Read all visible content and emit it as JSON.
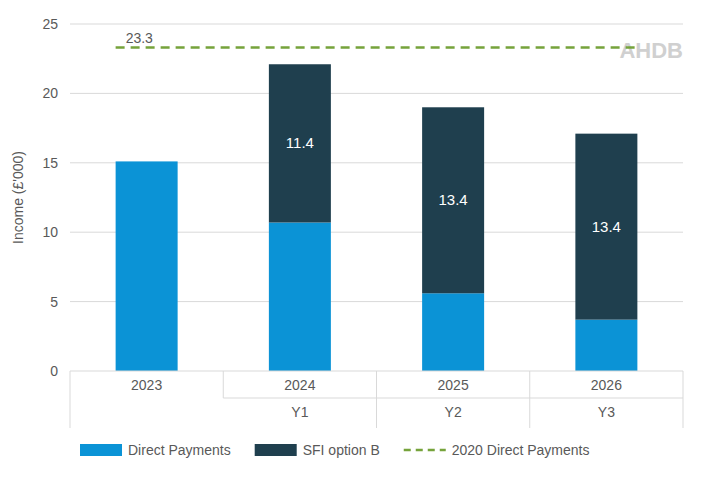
{
  "chart_data": {
    "type": "bar",
    "stacked": true,
    "grid": true,
    "legend": "bottom",
    "y_label": "Income (£'000)",
    "logo_text": "AHDB",
    "categories": [
      "2023",
      "2024",
      "2025",
      "2026"
    ],
    "x_sublabels": [
      null,
      "Y1",
      "Y2",
      "Y3"
    ],
    "ylim": [
      0,
      25
    ],
    "yticks": [
      0,
      5,
      10,
      15,
      20,
      25
    ],
    "series": [
      {
        "name": "Direct Payments",
        "color": "#0b93d6",
        "type": "bar",
        "values": [
          15.1,
          10.7,
          5.6,
          3.7
        ]
      },
      {
        "name": "SFI option B",
        "color": "#1f3f4e",
        "type": "bar",
        "data_labels": true,
        "values": [
          null,
          11.4,
          13.4,
          13.4
        ]
      },
      {
        "name": "2020 Direct Payments",
        "color": "#76a33b",
        "type": "line",
        "line_style": "dashed",
        "data_labels": true,
        "values": [
          23.3,
          23.3,
          23.3,
          23.3
        ]
      }
    ]
  }
}
